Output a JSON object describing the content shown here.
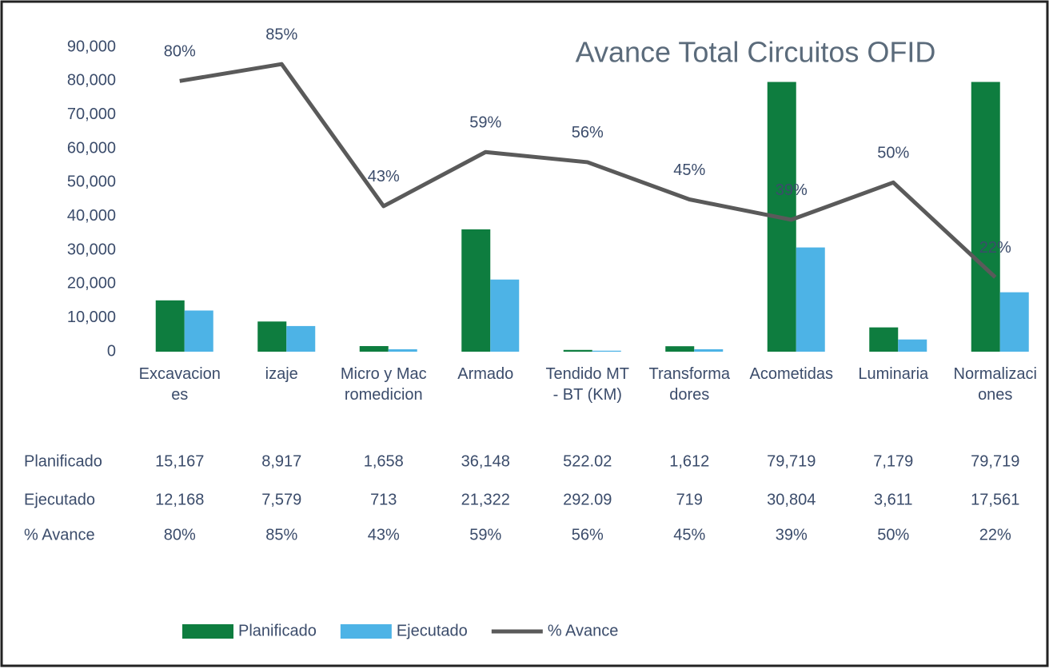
{
  "chart_data": {
    "type": "bar-line",
    "title": "Avance Total Circuitos OFID",
    "categories": [
      "Excavaciones",
      "izaje",
      "Micro y Macromedicion",
      "Armado",
      "Tendido MT - BT (KM)",
      "Transformadores",
      "Acometidas",
      "Luminaria",
      "Normalizaciones"
    ],
    "series": [
      {
        "name": "Planificado",
        "color": "#0e7d3f",
        "type": "bar",
        "values": [
          15167,
          8917,
          1658,
          36148,
          522.02,
          1612,
          79719,
          7179,
          79719
        ],
        "value_labels": [
          "15,167",
          "8,917",
          "1,658",
          "36,148",
          "522.02",
          "1,612",
          "79,719",
          "7,179",
          "79,719"
        ]
      },
      {
        "name": "Ejecutado",
        "color": "#4db3e6",
        "type": "bar",
        "values": [
          12168,
          7579,
          713,
          21322,
          292.09,
          719,
          30804,
          3611,
          17561
        ],
        "value_labels": [
          "12,168",
          "7,579",
          "713",
          "21,322",
          "292.09",
          "719",
          "30,804",
          "3,611",
          "17,561"
        ]
      },
      {
        "name": "% Avance",
        "color": "#5a5a5a",
        "type": "line",
        "axis": "y2",
        "values": [
          80,
          85,
          43,
          59,
          56,
          45,
          39,
          50,
          22
        ],
        "value_labels": [
          "80%",
          "85%",
          "43%",
          "59%",
          "56%",
          "45%",
          "39%",
          "50%",
          "22%"
        ]
      }
    ],
    "ylim": [
      0,
      90000
    ],
    "yticks": [
      0,
      {
        "value": 10000,
        "label": "10,000"
      },
      {
        "value": 20000,
        "label": "20,000"
      },
      {
        "value": 30000,
        "label": "30,000"
      },
      {
        "value": 40000,
        "label": "40,000"
      },
      {
        "value": 50000,
        "label": "50,000"
      },
      {
        "value": 60000,
        "label": "60,000"
      },
      {
        "value": 70000,
        "label": "70,000"
      },
      {
        "value": 80000,
        "label": "80,000"
      },
      {
        "value": 90000,
        "label": "90,000"
      }
    ],
    "y2lim": [
      0,
      90
    ],
    "grid": false,
    "legend": "bottom"
  }
}
